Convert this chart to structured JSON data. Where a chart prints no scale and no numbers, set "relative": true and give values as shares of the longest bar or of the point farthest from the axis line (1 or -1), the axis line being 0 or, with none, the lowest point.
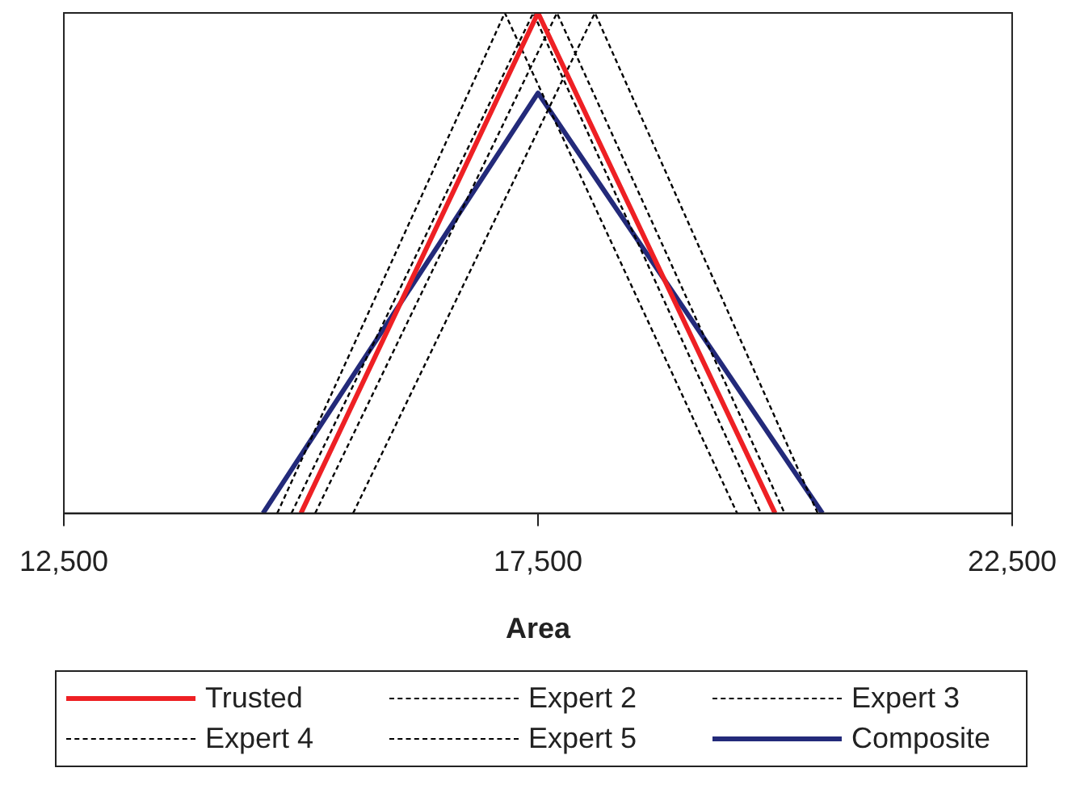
{
  "chart_data": {
    "type": "line",
    "xlabel": "Area",
    "relative": true,
    "grid": false,
    "legend": "bottom",
    "marker": "none",
    "xlim": [
      12500,
      22500
    ],
    "xticks": [
      {
        "value": 12500,
        "label": "12,500"
      },
      {
        "value": 17500,
        "label": "17,500"
      },
      {
        "value": 22500,
        "label": "22,500"
      }
    ],
    "series": [
      {
        "name": "Trusted",
        "color": "#ee2024",
        "line_style": "solid",
        "x": [
          15000,
          17500,
          20000
        ],
        "values": [
          0,
          1,
          0
        ]
      },
      {
        "name": "Expert 2",
        "color": "#000000",
        "line_style": "dotted",
        "x": [
          14750,
          17150,
          19600
        ],
        "values": [
          0,
          1,
          0
        ]
      },
      {
        "name": "Expert 3",
        "color": "#000000",
        "line_style": "dotted",
        "x": [
          14900,
          17450,
          19850
        ],
        "values": [
          0,
          1,
          0
        ]
      },
      {
        "name": "Expert 4",
        "color": "#000000",
        "line_style": "dotted",
        "x": [
          15150,
          17700,
          20100
        ],
        "values": [
          0,
          1,
          0
        ]
      },
      {
        "name": "Expert 5",
        "color": "#000000",
        "line_style": "dotted",
        "x": [
          15550,
          18100,
          20450
        ],
        "values": [
          0,
          1,
          0
        ]
      },
      {
        "name": "Composite",
        "color": "#232a7a",
        "line_style": "solid",
        "x": [
          14600,
          17500,
          20500
        ],
        "values": [
          0,
          0.84,
          0
        ]
      }
    ]
  }
}
